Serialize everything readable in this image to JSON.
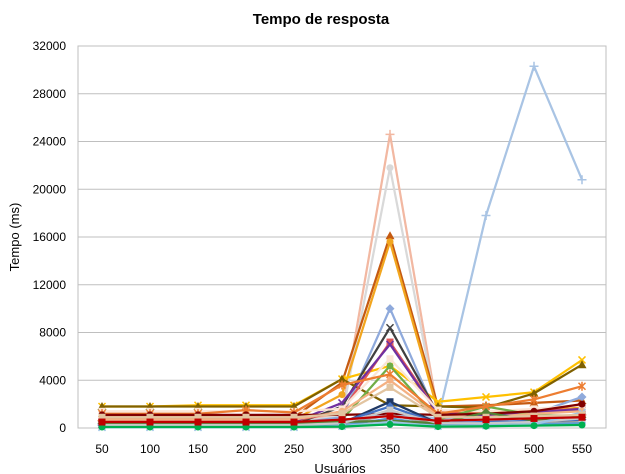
{
  "chart_data": {
    "type": "line",
    "title": "Tempo de resposta",
    "xlabel": "Usuários",
    "ylabel": "Tempo (ms)",
    "ylim": [
      0,
      32000
    ],
    "yticks": [
      0,
      4000,
      8000,
      12000,
      16000,
      20000,
      24000,
      28000,
      32000
    ],
    "grid": true,
    "categories": [
      "50",
      "100",
      "150",
      "200",
      "250",
      "300",
      "350",
      "400",
      "450",
      "500",
      "550"
    ],
    "series": [
      {
        "color": "#a9c4e4",
        "marker": "plus",
        "values": [
          300,
          300,
          300,
          300,
          300,
          600,
          1200,
          800,
          17800,
          30300,
          20800
        ]
      },
      {
        "color": "#f2b8a2",
        "marker": "plus",
        "values": [
          600,
          600,
          600,
          600,
          600,
          1200,
          24600,
          1200,
          800,
          900,
          1100
        ]
      },
      {
        "color": "#d9d9d9",
        "marker": "circle",
        "values": [
          500,
          500,
          500,
          500,
          500,
          1000,
          21800,
          1000,
          700,
          800,
          900
        ]
      },
      {
        "color": "#c55a11",
        "marker": "triangle",
        "values": [
          900,
          900,
          900,
          900,
          900,
          3800,
          16100,
          1800,
          1900,
          2100,
          2300
        ]
      },
      {
        "color": "#f2a61f",
        "marker": "circle",
        "values": [
          700,
          700,
          700,
          700,
          700,
          2800,
          15600,
          1400,
          1300,
          1500,
          1700
        ]
      },
      {
        "color": "#ffc000",
        "marker": "cross",
        "values": [
          1800,
          1800,
          1900,
          1900,
          1900,
          4100,
          5200,
          2200,
          2600,
          3000,
          5700
        ]
      },
      {
        "color": "#8faadc",
        "marker": "diamond",
        "values": [
          400,
          400,
          400,
          400,
          400,
          900,
          10000,
          800,
          900,
          1200,
          2600
        ]
      },
      {
        "color": "#404040",
        "marker": "cross",
        "values": [
          300,
          300,
          300,
          300,
          300,
          1800,
          8400,
          1200,
          1100,
          1300,
          1500
        ]
      },
      {
        "color": "#7f6000",
        "marker": "triangle",
        "values": [
          1800,
          1800,
          1800,
          1800,
          1800,
          4100,
          1900,
          1800,
          1700,
          2900,
          5300
        ]
      },
      {
        "color": "#e15759",
        "marker": "square",
        "values": [
          600,
          600,
          600,
          600,
          600,
          1400,
          7200,
          1300,
          1200,
          1400,
          1600
        ]
      },
      {
        "color": "#7030a0",
        "marker": "cross",
        "values": [
          500,
          500,
          500,
          500,
          500,
          2100,
          7000,
          1200,
          1100,
          1300,
          1600
        ]
      },
      {
        "color": "#fbe5d6",
        "marker": "square",
        "values": [
          1400,
          1400,
          1400,
          1400,
          1400,
          1600,
          5800,
          1500,
          1400,
          1600,
          1900
        ]
      },
      {
        "color": "#70ad47",
        "marker": "circle",
        "values": [
          300,
          300,
          300,
          300,
          300,
          700,
          5200,
          700,
          1800,
          1100,
          1000
        ]
      },
      {
        "color": "#ed7d31",
        "marker": "star",
        "values": [
          1200,
          1200,
          1200,
          1500,
          1300,
          3600,
          4500,
          1200,
          1800,
          2400,
          3500
        ]
      },
      {
        "color": "#f4b183",
        "marker": "circle",
        "values": [
          700,
          700,
          700,
          700,
          700,
          1400,
          4000,
          1000,
          900,
          1200,
          1400
        ]
      },
      {
        "color": "#800000",
        "marker": "circle",
        "values": [
          1100,
          1100,
          1100,
          1100,
          1100,
          1100,
          1200,
          1100,
          1200,
          1400,
          2000
        ]
      },
      {
        "color": "#1f3864",
        "marker": "square",
        "values": [
          200,
          200,
          200,
          200,
          200,
          400,
          2200,
          400,
          400,
          500,
          600
        ]
      },
      {
        "color": "#4472c4",
        "marker": "diamond",
        "values": [
          200,
          200,
          200,
          200,
          200,
          500,
          1800,
          400,
          500,
          600,
          700
        ]
      },
      {
        "color": "#a5a5a5",
        "marker": "square",
        "values": [
          150,
          150,
          150,
          150,
          150,
          300,
          1100,
          300,
          300,
          400,
          500
        ]
      },
      {
        "color": "#5b9bd5",
        "marker": "circle",
        "values": [
          100,
          100,
          100,
          100,
          100,
          200,
          800,
          200,
          300,
          300,
          400
        ]
      },
      {
        "color": "#548235",
        "marker": "diamond",
        "values": [
          400,
          400,
          400,
          400,
          400,
          500,
          600,
          400,
          1300,
          600,
          900
        ]
      },
      {
        "color": "#c9c9c9",
        "marker": "square",
        "values": [
          250,
          250,
          250,
          250,
          250,
          400,
          1500,
          400,
          400,
          500,
          800
        ]
      },
      {
        "color": "#9dc3e6",
        "marker": "cross",
        "values": [
          50,
          50,
          50,
          50,
          50,
          150,
          500,
          150,
          200,
          300,
          1300
        ]
      },
      {
        "color": "#e2c4a0",
        "marker": "square",
        "values": [
          900,
          900,
          900,
          900,
          900,
          1200,
          3400,
          900,
          900,
          1000,
          1100
        ]
      },
      {
        "color": "#00b050",
        "marker": "circle",
        "values": [
          80,
          80,
          80,
          80,
          80,
          120,
          300,
          120,
          150,
          200,
          250
        ]
      },
      {
        "color": "#c00000",
        "marker": "square",
        "values": [
          500,
          500,
          500,
          500,
          500,
          700,
          1000,
          600,
          700,
          800,
          900
        ]
      }
    ]
  }
}
